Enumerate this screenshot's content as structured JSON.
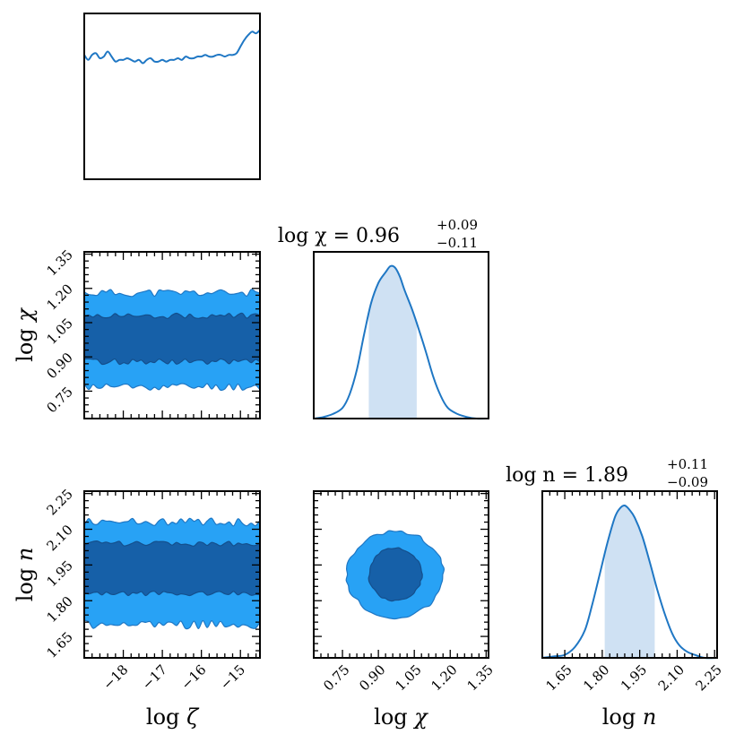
{
  "chart_data": {
    "type": "corner",
    "colors": {
      "line": "#1f77c4",
      "inner_contour": "#1660a8",
      "outer_contour": "#28a2f5",
      "band": "#cfe1f3"
    },
    "parameters": [
      {
        "key": "zeta",
        "label_prefix": "log",
        "symbol": "ζ",
        "range": [
          -19.0,
          -14.5
        ],
        "ticks": [
          -18,
          -17,
          -16,
          -15
        ],
        "tick_labels": [
          "−18",
          "−17",
          "−16",
          "−15"
        ]
      },
      {
        "key": "chi",
        "label_prefix": "log",
        "symbol": "χ",
        "range": [
          0.62,
          1.35
        ],
        "ticks": [
          0.75,
          0.9,
          1.05,
          1.2,
          1.35
        ],
        "tick_labels": [
          "0.75",
          "0.90",
          "1.05",
          "1.20",
          "1.35"
        ],
        "median": 0.96,
        "err_plus": 0.09,
        "err_minus": 0.11,
        "title_main": "log χ = 0.96",
        "title_plus": "+0.09",
        "title_minus": "−0.11"
      },
      {
        "key": "n",
        "label_prefix": "log",
        "symbol": "n",
        "range": [
          1.55,
          2.25
        ],
        "ticks": [
          1.65,
          1.8,
          1.95,
          2.1,
          2.25
        ],
        "tick_labels": [
          "1.65",
          "1.80",
          "1.95",
          "2.10",
          "2.25"
        ],
        "median": 1.89,
        "err_plus": 0.11,
        "err_minus": 0.09,
        "title_main": "log n = 1.89",
        "title_plus": "+0.11",
        "title_minus": "−0.09"
      }
    ],
    "marginals": {
      "zeta": {
        "x": [
          -19.0,
          -18.9,
          -18.8,
          -18.7,
          -18.6,
          -18.5,
          -18.4,
          -18.3,
          -18.2,
          -18.1,
          -18.0,
          -17.9,
          -17.8,
          -17.7,
          -17.6,
          -17.5,
          -17.4,
          -17.3,
          -17.2,
          -17.1,
          -17.0,
          -16.9,
          -16.8,
          -16.7,
          -16.6,
          -16.5,
          -16.4,
          -16.3,
          -16.2,
          -16.1,
          -16.0,
          -15.9,
          -15.8,
          -15.7,
          -15.6,
          -15.5,
          -15.4,
          -15.3,
          -15.2,
          -15.1,
          -15.0,
          -14.9,
          -14.8,
          -14.7,
          -14.6,
          -14.5
        ],
        "y": [
          0.75,
          0.72,
          0.75,
          0.76,
          0.73,
          0.74,
          0.77,
          0.74,
          0.71,
          0.72,
          0.72,
          0.73,
          0.72,
          0.71,
          0.72,
          0.7,
          0.72,
          0.73,
          0.71,
          0.71,
          0.72,
          0.71,
          0.72,
          0.72,
          0.73,
          0.72,
          0.74,
          0.73,
          0.73,
          0.74,
          0.74,
          0.75,
          0.74,
          0.74,
          0.75,
          0.75,
          0.74,
          0.75,
          0.75,
          0.76,
          0.8,
          0.84,
          0.87,
          0.89,
          0.88,
          0.9
        ]
      },
      "chi": {
        "x": [
          0.62,
          0.66,
          0.7,
          0.74,
          0.77,
          0.8,
          0.83,
          0.86,
          0.89,
          0.92,
          0.94,
          0.96,
          0.98,
          1.0,
          1.03,
          1.06,
          1.09,
          1.12,
          1.15,
          1.18,
          1.22,
          1.26,
          1.3,
          1.35
        ],
        "y": [
          0.0,
          0.01,
          0.03,
          0.07,
          0.16,
          0.32,
          0.55,
          0.76,
          0.89,
          0.96,
          1.0,
          0.99,
          0.93,
          0.84,
          0.72,
          0.58,
          0.43,
          0.27,
          0.15,
          0.07,
          0.03,
          0.01,
          0.0,
          0.0
        ]
      },
      "n": {
        "x": [
          1.55,
          1.6,
          1.64,
          1.68,
          1.72,
          1.75,
          1.78,
          1.81,
          1.84,
          1.86,
          1.88,
          1.9,
          1.92,
          1.95,
          1.98,
          2.01,
          2.04,
          2.07,
          2.1,
          2.13,
          2.16,
          2.2,
          2.25
        ],
        "y": [
          0.0,
          0.01,
          0.02,
          0.07,
          0.18,
          0.35,
          0.55,
          0.75,
          0.92,
          0.98,
          1.0,
          0.97,
          0.92,
          0.8,
          0.63,
          0.45,
          0.29,
          0.16,
          0.08,
          0.04,
          0.02,
          0.0,
          0.0
        ]
      }
    },
    "joint": {
      "zeta_chi": {
        "inner_band": [
          0.87,
          1.07
        ],
        "outer_band": [
          0.76,
          1.17
        ]
      },
      "zeta_n": {
        "inner_band": [
          1.82,
          2.03
        ],
        "outer_band": [
          1.69,
          2.12
        ]
      },
      "chi_n": {
        "center": [
          0.96,
          1.9
        ],
        "inner_radius": [
          0.11,
          0.11
        ],
        "outer_radius": [
          0.2,
          0.18
        ]
      }
    }
  }
}
